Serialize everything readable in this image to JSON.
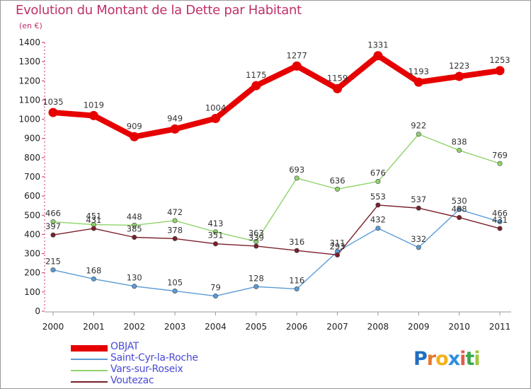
{
  "title": "Evolution du Montant de la Dette par Habitant",
  "subtitle": "(en €)",
  "logo": {
    "text": "Proxiti",
    "letters": [
      "P",
      "r",
      "o",
      "x",
      "i",
      "t",
      "i"
    ],
    "colors": [
      "#1f6fc0",
      "#e8772a",
      "#f2b21b",
      "#2f8ee0",
      "#e25b4c",
      "#3aa84a",
      "#a0c83a"
    ]
  },
  "chart_data": {
    "type": "line",
    "title": "Evolution du Montant de la Dette par Habitant",
    "ylabel": "(en €)",
    "xlabel": "",
    "x": [
      "2000",
      "2001",
      "2002",
      "2003",
      "2004",
      "2005",
      "2006",
      "2007",
      "2008",
      "2009",
      "2010",
      "2011"
    ],
    "yticks": [
      "0",
      "100",
      "200",
      "300",
      "400",
      "500",
      "600",
      "700",
      "800",
      "900",
      "1000",
      "1100",
      "1200",
      "1300",
      "1400"
    ],
    "ylim": [
      0,
      1400
    ],
    "grid": false,
    "legend": "bottom-left",
    "series": [
      {
        "name": "OBJAT",
        "color": "#e60000",
        "values": [
          1035,
          1019,
          909,
          949,
          1004,
          1175,
          1277,
          1159,
          1331,
          1193,
          1223,
          1253
        ]
      },
      {
        "name": "Saint-Cyr-la-Roche",
        "color": "#5b9bd5",
        "values": [
          215,
          168,
          130,
          105,
          79,
          128,
          116,
          311,
          432,
          332,
          530,
          466
        ]
      },
      {
        "name": "Vars-sur-Roseix",
        "color": "#8fd36b",
        "values": [
          466,
          451,
          448,
          472,
          413,
          363,
          693,
          636,
          676,
          922,
          838,
          769
        ]
      },
      {
        "name": "Voutezac",
        "color": "#7a1f2b",
        "values": [
          397,
          431,
          385,
          378,
          351,
          339,
          316,
          293,
          553,
          537,
          488,
          431
        ]
      }
    ]
  }
}
